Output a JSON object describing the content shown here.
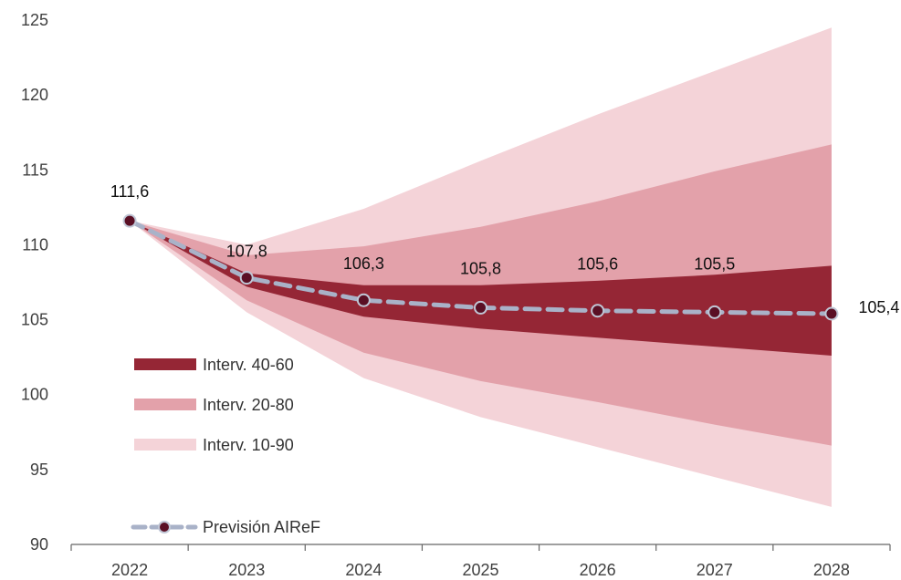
{
  "chart_data": {
    "type": "area",
    "x": [
      "2022",
      "2023",
      "2024",
      "2025",
      "2026",
      "2027",
      "2028"
    ],
    "ylim": [
      90,
      125
    ],
    "yticks": [
      90,
      95,
      100,
      105,
      110,
      115,
      120,
      125
    ],
    "grid": false,
    "legend_position": "bottom-left",
    "bands": [
      {
        "name": "Interv. 10-90",
        "color": "#f4d3d8",
        "upper": [
          111.6,
          110.0,
          112.4,
          115.6,
          118.7,
          121.6,
          124.5
        ],
        "lower": [
          111.6,
          105.5,
          101.1,
          98.5,
          96.5,
          94.5,
          92.5
        ]
      },
      {
        "name": "Interv. 20-80",
        "color": "#e3a1aa",
        "upper": [
          111.6,
          109.3,
          109.9,
          111.2,
          112.9,
          114.9,
          116.7
        ],
        "lower": [
          111.6,
          106.3,
          102.8,
          100.9,
          99.5,
          98.0,
          96.6
        ]
      },
      {
        "name": "Interv. 40-60",
        "color": "#952635",
        "upper": [
          111.6,
          108.1,
          107.3,
          107.3,
          107.6,
          108.0,
          108.6
        ],
        "lower": [
          111.6,
          107.2,
          105.2,
          104.4,
          103.8,
          103.2,
          102.6
        ]
      }
    ],
    "series": [
      {
        "name": "Previsión AIReF",
        "values": [
          111.6,
          107.8,
          106.3,
          105.8,
          105.6,
          105.5,
          105.4
        ]
      }
    ],
    "data_labels": [
      "111,6",
      "107,8",
      "106,3",
      "105,8",
      "105,6",
      "105,5",
      "105,4"
    ],
    "colors": {
      "line": "#a9b2c8",
      "marker_fill": "#5a0f24",
      "marker_stroke": "#c0c7d6",
      "axis": "#666666"
    }
  },
  "legend": {
    "band_40_60": "Interv. 40-60",
    "band_20_80": "Interv. 20-80",
    "band_10_90": "Interv. 10-90",
    "forecast": "Previsión AIReF"
  }
}
